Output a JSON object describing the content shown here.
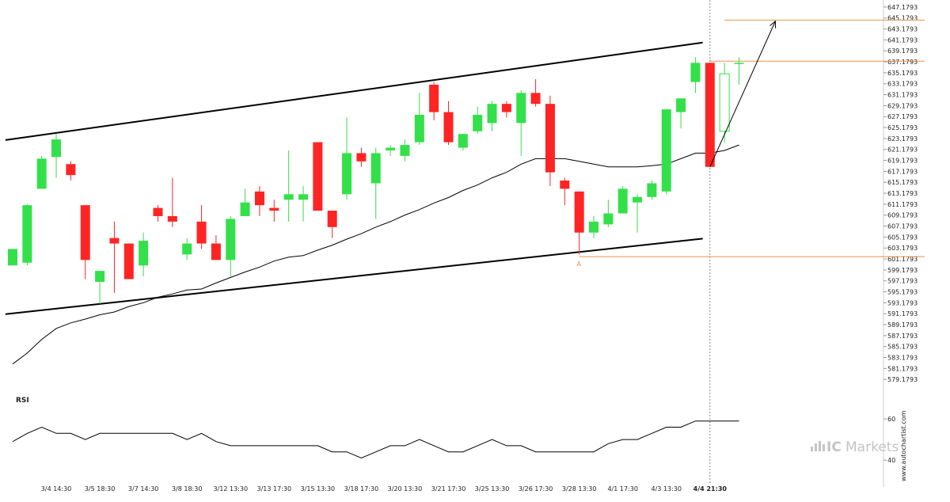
{
  "chart_data": {
    "type": "candlestick",
    "y_ticks": [
      "647.1793",
      "645.1793",
      "643.1793",
      "641.1793",
      "639.1793",
      "637.1793",
      "635.1793",
      "633.1793",
      "631.1793",
      "629.1793",
      "627.1793",
      "625.1793",
      "623.1793",
      "621.1793",
      "619.1793",
      "617.1793",
      "615.1793",
      "613.1793",
      "611.1793",
      "609.1793",
      "607.1793",
      "605.1793",
      "603.1793",
      "601.1793",
      "599.1793",
      "597.1793",
      "595.1793",
      "593.1793",
      "591.1793",
      "589.1793",
      "587.1793",
      "585.1793",
      "583.1793",
      "581.1793",
      "579.1793"
    ],
    "ylim": [
      578.2,
      647.6
    ],
    "x_tick_labels": [
      "3/4 14:30",
      "3/5 18:30",
      "3/7 14:30",
      "3/8 18:30",
      "3/12 13:30",
      "3/13 17:30",
      "3/15 13:30",
      "3/18 17:30",
      "3/20 13:30",
      "3/21 17:30",
      "3/25 13:30",
      "3/26 17:30",
      "3/28 13:30",
      "4/1 17:30",
      "4/3 13:30",
      "4/4 21:30"
    ],
    "x_tick_bar_index": [
      3,
      6,
      9,
      12,
      15,
      18,
      21,
      24,
      27,
      30,
      33,
      36,
      39,
      42,
      45,
      48
    ],
    "current_time_bar_index": 48,
    "candles": [
      {
        "o": 600,
        "c": 603,
        "h": 603,
        "l": 600
      },
      {
        "o": 600.5,
        "c": 611,
        "h": 611.2,
        "l": 600
      },
      {
        "o": 614,
        "c": 619.5,
        "h": 620,
        "l": 614
      },
      {
        "o": 619.8,
        "c": 623,
        "h": 624,
        "l": 616
      },
      {
        "o": 618.5,
        "c": 616.5,
        "h": 619,
        "l": 615.5
      },
      {
        "o": 611,
        "c": 601,
        "h": 611,
        "l": 597.5
      },
      {
        "o": 597,
        "c": 599,
        "h": 599,
        "l": 593
      },
      {
        "o": 605,
        "c": 604,
        "h": 608,
        "l": 595
      },
      {
        "o": 604,
        "c": 597.5,
        "h": 604,
        "l": 597.5
      },
      {
        "o": 600,
        "c": 604.5,
        "h": 606,
        "l": 598
      },
      {
        "o": 610.5,
        "c": 609,
        "h": 611,
        "l": 608
      },
      {
        "o": 609,
        "c": 608,
        "h": 616,
        "l": 607
      },
      {
        "o": 602,
        "c": 604,
        "h": 605,
        "l": 601
      },
      {
        "o": 608,
        "c": 604,
        "h": 611,
        "l": 603
      },
      {
        "o": 604,
        "c": 601,
        "h": 605.5,
        "l": 601
      },
      {
        "o": 601,
        "c": 608.5,
        "h": 609,
        "l": 598
      },
      {
        "o": 609,
        "c": 611.5,
        "h": 614,
        "l": 609
      },
      {
        "o": 613.5,
        "c": 611,
        "h": 614.5,
        "l": 609
      },
      {
        "o": 610.5,
        "c": 610,
        "h": 612,
        "l": 608
      },
      {
        "o": 612,
        "c": 613,
        "h": 621,
        "l": 608
      },
      {
        "o": 612,
        "c": 613,
        "h": 614.5,
        "l": 608
      },
      {
        "o": 622.5,
        "c": 610,
        "h": 622.5,
        "l": 610
      },
      {
        "o": 610,
        "c": 607,
        "h": 610,
        "l": 605
      },
      {
        "o": 613,
        "c": 620.5,
        "h": 627,
        "l": 612
      },
      {
        "o": 620.5,
        "c": 619,
        "h": 621.5,
        "l": 618
      },
      {
        "o": 615,
        "c": 620.5,
        "h": 621.5,
        "l": 608.5
      },
      {
        "o": 621,
        "c": 621.5,
        "h": 622,
        "l": 620
      },
      {
        "o": 620,
        "c": 622,
        "h": 623,
        "l": 619
      },
      {
        "o": 622.5,
        "c": 627.5,
        "h": 631.5,
        "l": 622
      },
      {
        "o": 633,
        "c": 628,
        "h": 633.5,
        "l": 626.5
      },
      {
        "o": 628,
        "c": 622.5,
        "h": 630,
        "l": 622
      },
      {
        "o": 621.5,
        "c": 624,
        "h": 624,
        "l": 621
      },
      {
        "o": 624.5,
        "c": 627.5,
        "h": 629,
        "l": 624
      },
      {
        "o": 626,
        "c": 629.5,
        "h": 630,
        "l": 624.5
      },
      {
        "o": 629.5,
        "c": 628,
        "h": 630,
        "l": 627
      },
      {
        "o": 626,
        "c": 631.5,
        "h": 632,
        "l": 620
      },
      {
        "o": 631.5,
        "c": 629.5,
        "h": 634,
        "l": 629
      },
      {
        "o": 629.5,
        "c": 617,
        "h": 631,
        "l": 614.5
      },
      {
        "o": 615.5,
        "c": 614,
        "h": 616,
        "l": 611
      },
      {
        "o": 613.5,
        "c": 606,
        "h": 613.5,
        "l": 602
      },
      {
        "o": 606,
        "c": 608,
        "h": 609,
        "l": 605
      },
      {
        "o": 607.5,
        "c": 609.5,
        "h": 612,
        "l": 607
      },
      {
        "o": 609.5,
        "c": 614,
        "h": 614.5,
        "l": 609.5
      },
      {
        "o": 611.5,
        "c": 612.5,
        "h": 613,
        "l": 606
      },
      {
        "o": 612.5,
        "c": 615,
        "h": 615.5,
        "l": 612
      },
      {
        "o": 613.5,
        "c": 628.5,
        "h": 628.5,
        "l": 613
      },
      {
        "o": 628,
        "c": 630.5,
        "h": 630.5,
        "l": 625
      },
      {
        "o": 633.5,
        "c": 637,
        "h": 638,
        "l": 631.5
      },
      {
        "o": 637,
        "c": 618,
        "h": 637,
        "l": 618
      },
      {
        "o": 624.5,
        "c": 635,
        "h": 637,
        "l": 622.5
      },
      {
        "o": 637,
        "c": 637,
        "h": 638,
        "l": 633
      }
    ],
    "moving_average": [
      582,
      584,
      586.5,
      588.5,
      589.5,
      590.2,
      591,
      591.5,
      592.5,
      593.2,
      594.2,
      594.8,
      595.5,
      595.7,
      596.8,
      597.8,
      598.8,
      599.7,
      600.8,
      601.5,
      601.8,
      602.8,
      603.7,
      604.8,
      605.8,
      607,
      608,
      609.2,
      610.2,
      611.4,
      612.4,
      613.7,
      614.7,
      616,
      617,
      618.5,
      619.5,
      619.5,
      619.5,
      619,
      618.5,
      618,
      618,
      618,
      618.2,
      618.5,
      619.5,
      620.5,
      620.5,
      621,
      622
    ],
    "trend_upper": {
      "x": [
        -0.5,
        47.5
      ],
      "y": [
        622.9,
        640.7
      ]
    },
    "trend_lower": {
      "x": [
        -0.5,
        47.5
      ],
      "y": [
        591.1,
        604.9
      ]
    },
    "horizontal_levels": [
      {
        "value": 601.6,
        "from_bar": 39,
        "label": "A"
      },
      {
        "value": 637.3,
        "from_bar": 48
      },
      {
        "value": 644.8,
        "from_bar": 49
      }
    ],
    "forecast_arrow": {
      "from": {
        "x": 48,
        "y": 618
      },
      "to": {
        "x": 52.5,
        "y": 644.6
      }
    },
    "rsi": {
      "title": "RSI",
      "ticks": [
        "60",
        "40"
      ],
      "ylim": [
        27,
        75
      ],
      "values": [
        49,
        53,
        56,
        53,
        53,
        50,
        53,
        53,
        53,
        53,
        53,
        53,
        50,
        53,
        49,
        47,
        47,
        47,
        47,
        47,
        47,
        47,
        44,
        44,
        41,
        44,
        47,
        47,
        50,
        47,
        44,
        44,
        47,
        50,
        47,
        47,
        44,
        44,
        44,
        44,
        44,
        48,
        50,
        50,
        53,
        56,
        56,
        59,
        59,
        59,
        59
      ]
    },
    "colors": {
      "up": "#33e04a",
      "down": "#ff2424",
      "level": "#e8924a",
      "line": "#000000"
    }
  },
  "watermark": "www.autochartist.com",
  "brand": {
    "ic": "IC",
    "markets": "Markets"
  }
}
